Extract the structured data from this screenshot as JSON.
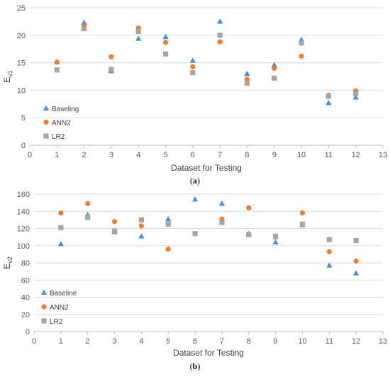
{
  "colors": {
    "baseline": "#4A90D0",
    "ann2": "#ED7D31",
    "lr2": "#A5A5A5",
    "grid": "#D9D9D9",
    "axis": "#BFBFBF"
  },
  "chart_data": [
    {
      "type": "scatter",
      "caption_letter": "a",
      "xlabel": "Dataset for Testing",
      "ylabel_main": "E",
      "ylabel_sub": "v1",
      "xlim": [
        0,
        13
      ],
      "ylim": [
        0,
        25
      ],
      "xticks": [
        0,
        1,
        2,
        3,
        4,
        5,
        6,
        7,
        8,
        9,
        10,
        11,
        12,
        13
      ],
      "yticks": [
        0,
        5,
        10,
        15,
        20,
        25
      ],
      "legend_position": "bottom-left",
      "grid": true,
      "series": [
        {
          "name": "Baseling",
          "marker": "triangle",
          "color": "#4A90D0",
          "x": [
            1,
            2,
            3,
            4,
            5,
            6,
            7,
            8,
            9,
            10,
            11,
            12
          ],
          "y": [
            15.2,
            22.3,
            13.5,
            19.4,
            19.7,
            15.4,
            22.5,
            13.0,
            14.6,
            19.2,
            7.7,
            8.7
          ]
        },
        {
          "name": "ANN2",
          "marker": "circle",
          "color": "#ED7D31",
          "x": [
            1,
            2,
            3,
            4,
            5,
            6,
            7,
            8,
            9,
            10,
            11,
            12
          ],
          "y": [
            15.1,
            21.7,
            16.1,
            21.3,
            18.7,
            14.3,
            18.8,
            12.0,
            14.0,
            16.2,
            9.1,
            9.9
          ]
        },
        {
          "name": "LR2",
          "marker": "square",
          "color": "#A5A5A5",
          "x": [
            1,
            2,
            3,
            4,
            5,
            6,
            7,
            8,
            9,
            10,
            11,
            12
          ],
          "y": [
            13.7,
            21.2,
            13.8,
            20.7,
            16.6,
            13.2,
            20.0,
            11.3,
            12.2,
            18.6,
            8.9,
            9.4
          ]
        }
      ]
    },
    {
      "type": "scatter",
      "caption_letter": "b",
      "xlabel": "Dataset for Testing",
      "ylabel_main": "E",
      "ylabel_sub": "v2",
      "xlim": [
        0,
        13
      ],
      "ylim": [
        0,
        160
      ],
      "xticks": [
        0,
        1,
        2,
        3,
        4,
        5,
        6,
        7,
        8,
        9,
        10,
        11,
        12,
        13
      ],
      "yticks": [
        0,
        20,
        40,
        60,
        80,
        100,
        120,
        140,
        160
      ],
      "legend_position": "bottom-left",
      "grid": true,
      "series": [
        {
          "name": "Baseline",
          "marker": "triangle",
          "color": "#4A90D0",
          "x": [
            1,
            2,
            3,
            4,
            5,
            6,
            7,
            8,
            9,
            10,
            11,
            12
          ],
          "y": [
            102,
            136,
            116,
            111,
            131,
            154,
            149,
            114,
            104,
            124,
            77,
            68
          ]
        },
        {
          "name": "ANN2",
          "marker": "circle",
          "color": "#ED7D31",
          "x": [
            1,
            2,
            3,
            4,
            5,
            6,
            7,
            8,
            9,
            10,
            11,
            12
          ],
          "y": [
            138,
            149,
            128,
            123,
            96,
            114,
            131,
            144,
            110,
            138,
            93,
            82
          ]
        },
        {
          "name": "LR2",
          "marker": "square",
          "color": "#A5A5A5",
          "x": [
            1,
            2,
            3,
            4,
            5,
            6,
            7,
            8,
            9,
            10,
            11,
            12
          ],
          "y": [
            121,
            133,
            117,
            130,
            125,
            114,
            127,
            113,
            111,
            125,
            107,
            106
          ]
        }
      ]
    }
  ]
}
